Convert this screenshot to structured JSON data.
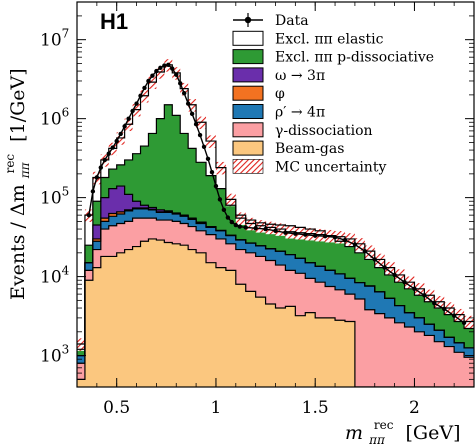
{
  "chart_data": {
    "type": "histogram",
    "experiment_label": "H1",
    "xlabel_main": "m",
    "xlabel_sub": "ππ",
    "xlabel_sup": "rec",
    "xlabel_unit": "[GeV]",
    "ylabel_prefix": "Events / Δm",
    "ylabel_sub": "ππ",
    "ylabel_sup": "rec",
    "ylabel_unit": "[1/GeV]",
    "xlim": [
      0.3,
      2.3
    ],
    "ylim": [
      400,
      30000000
    ],
    "yscale": "log",
    "x_ticks": [
      {
        "value": 0.5,
        "label": "0.5"
      },
      {
        "value": 1.0,
        "label": "1"
      },
      {
        "value": 1.5,
        "label": "1.5"
      },
      {
        "value": 2.0,
        "label": "2"
      }
    ],
    "y_ticks": [
      {
        "value": 1000,
        "base": "10",
        "exp": "3"
      },
      {
        "value": 10000,
        "base": "10",
        "exp": "4"
      },
      {
        "value": 100000,
        "base": "10",
        "exp": "5"
      },
      {
        "value": 1000000,
        "base": "10",
        "exp": "6"
      },
      {
        "value": 10000000,
        "base": "10",
        "exp": "7"
      }
    ],
    "legend_position": "top-right",
    "legend": [
      {
        "label": "Data",
        "kind": "data",
        "color": "#000000"
      },
      {
        "label": "Excl. ππ elastic",
        "kind": "box",
        "color": "#ffffff"
      },
      {
        "label": "Excl. ππ p-dissociative",
        "kind": "box",
        "color": "#2e9a34"
      },
      {
        "label": "ω → 3π",
        "kind": "box",
        "color": "#6a2eab"
      },
      {
        "label": "φ",
        "kind": "box",
        "color": "#f37221"
      },
      {
        "label": "ρ′ → 4π",
        "kind": "box",
        "color": "#1f78b4"
      },
      {
        "label": "γ-dissociation",
        "kind": "box",
        "color": "#fb9fa3"
      },
      {
        "label": "Beam-gas",
        "kind": "box",
        "color": "#fbc77f"
      },
      {
        "label": "MC uncertainty",
        "kind": "hatch",
        "color": "#e0201b"
      }
    ],
    "bin_edges": [
      0.3,
      0.34,
      0.38,
      0.42,
      0.46,
      0.5,
      0.54,
      0.58,
      0.62,
      0.66,
      0.7,
      0.74,
      0.78,
      0.82,
      0.86,
      0.9,
      0.95,
      1.0,
      1.05,
      1.1,
      1.15,
      1.2,
      1.25,
      1.3,
      1.35,
      1.4,
      1.45,
      1.5,
      1.55,
      1.6,
      1.65,
      1.7,
      1.75,
      1.8,
      1.85,
      1.9,
      1.95,
      2.0,
      2.05,
      2.1,
      2.15,
      2.2,
      2.25,
      2.3
    ],
    "stack_order": [
      "Beam-gas",
      "γ-dissociation",
      "ρ′ → 4π",
      "φ",
      "ω → 3π",
      "Excl. ππ p-dissociative",
      "Excl. ππ elastic"
    ],
    "stack_colors": [
      "#fbc77f",
      "#fb9fa3",
      "#1f78b4",
      "#f37221",
      "#6a2eab",
      "#2e9a34",
      "#ffffff"
    ],
    "stack_totals": {
      "Beam-gas": [
        500,
        9000,
        13000,
        18000,
        18000,
        20000,
        22000,
        24000,
        28000,
        30000,
        29000,
        27000,
        26000,
        25000,
        22000,
        20000,
        15000,
        13000,
        12000,
        8000,
        6500,
        5500,
        4500,
        4000,
        4200,
        3200,
        3500,
        3000,
        3000,
        2800,
        2700,
        400,
        400,
        400,
        400,
        400,
        400,
        400,
        400,
        400,
        400,
        400,
        400
      ],
      "γ-dissociation": [
        800,
        12000,
        22000,
        40000,
        44000,
        47000,
        50000,
        55000,
        55000,
        55000,
        52000,
        52000,
        50000,
        47000,
        43000,
        38000,
        34000,
        30000,
        26000,
        22000,
        20000,
        18000,
        16000,
        14000,
        12000,
        11000,
        9500,
        8500,
        7500,
        6800,
        6000,
        5200,
        3800,
        3400,
        3000,
        2600,
        2300,
        2000,
        1800,
        1500,
        1300,
        1100,
        950
      ],
      "ρ′ → 4π": [
        1000,
        15000,
        28000,
        50000,
        58000,
        62000,
        68000,
        72000,
        72000,
        70000,
        65000,
        65000,
        62000,
        58000,
        53000,
        47000,
        42000,
        38000,
        33000,
        29000,
        26500,
        24500,
        22500,
        21000,
        19000,
        17000,
        15000,
        13500,
        12000,
        10800,
        9500,
        8400,
        7600,
        6400,
        5300,
        4300,
        3500,
        3000,
        2500,
        2100,
        1700,
        1450,
        1250
      ],
      "φ": [
        1000,
        15000,
        30000,
        55000,
        63000,
        66000,
        70000,
        74000,
        74000,
        71000,
        66000,
        66000,
        63000,
        59000,
        54000,
        48000,
        42500,
        38300,
        33300,
        29200,
        26600,
        24500,
        22500,
        21000,
        19000,
        17000,
        15000,
        13500,
        12000,
        10800,
        9500,
        8400,
        7600,
        6400,
        5300,
        4300,
        3500,
        3000,
        2500,
        2100,
        1700,
        1450,
        1250
      ],
      "ω → 3π": [
        1000,
        15000,
        45000,
        100000,
        130000,
        140000,
        110000,
        90000,
        80000,
        75000,
        70000,
        68000,
        64000,
        60000,
        55000,
        49000,
        43000,
        38500,
        33400,
        29300,
        26700,
        24500,
        22500,
        21000,
        19000,
        17000,
        15000,
        13500,
        12000,
        10800,
        9500,
        8400,
        7600,
        6400,
        5300,
        4300,
        3500,
        3000,
        2500,
        2100,
        1700,
        1450,
        1250
      ],
      "Excl. ππ p-dissociative": [
        1200,
        25000,
        90000,
        180000,
        230000,
        260000,
        300000,
        360000,
        450000,
        650000,
        1000000,
        1500000,
        1100000,
        650000,
        420000,
        280000,
        190000,
        130000,
        80000,
        60000,
        52000,
        48000,
        46000,
        45000,
        44000,
        42000,
        40000,
        38000,
        33000,
        28000,
        24000,
        20000,
        16500,
        13000,
        10500,
        8500,
        7000,
        5800,
        4800,
        4000,
        3300,
        2700,
        2200
      ],
      "Excl. ππ elastic": [
        1400,
        60000,
        180000,
        300000,
        420000,
        570000,
        850000,
        1300000,
        1950000,
        2900000,
        3900000,
        4800000,
        3800000,
        2400000,
        1500000,
        900000,
        520000,
        240000,
        95000,
        55000,
        47000,
        44000,
        42000,
        40000,
        37000,
        36000,
        35000,
        34000,
        33000,
        32000,
        30000,
        26000,
        21000,
        16500,
        13000,
        10500,
        8500,
        7000,
        5800,
        4800,
        4000,
        3300,
        2700
      ]
    },
    "data_points": {
      "x": [
        0.36,
        0.38,
        0.4,
        0.42,
        0.44,
        0.46,
        0.48,
        0.5,
        0.52,
        0.54,
        0.56,
        0.58,
        0.6,
        0.62,
        0.64,
        0.66,
        0.68,
        0.7,
        0.72,
        0.74,
        0.76,
        0.78,
        0.8,
        0.82,
        0.84,
        0.86,
        0.88,
        0.9,
        0.92,
        0.94,
        0.96,
        0.98,
        1.0,
        1.02,
        1.04,
        1.06,
        1.08,
        1.1,
        1.12,
        1.15,
        1.2,
        1.25,
        1.3,
        1.35,
        1.4,
        1.45,
        1.5,
        1.55,
        1.6,
        1.65,
        1.7,
        1.75,
        1.8,
        1.85,
        1.9,
        1.95,
        2.0,
        2.05,
        2.1,
        2.15,
        2.2,
        2.25
      ],
      "y": [
        60000,
        120000,
        180000,
        240000,
        300000,
        360000,
        430000,
        520000,
        640000,
        800000,
        1000000,
        1250000,
        1550000,
        1950000,
        2450000,
        3000000,
        3500000,
        4000000,
        4400000,
        4700000,
        4800000,
        4300000,
        3600000,
        2800000,
        2100000,
        1550000,
        1150000,
        850000,
        620000,
        440000,
        310000,
        210000,
        140000,
        95000,
        70000,
        56000,
        49000,
        45000,
        43000,
        42000,
        41000,
        40000,
        38000,
        36000,
        35000,
        34000,
        33000,
        32500,
        31500,
        29000,
        25500,
        21000,
        16500,
        13000,
        10500,
        8500,
        7000,
        5800,
        4600,
        3900,
        3200,
        2600
      ]
    },
    "mc_uncertainty_rel": 0.18
  }
}
